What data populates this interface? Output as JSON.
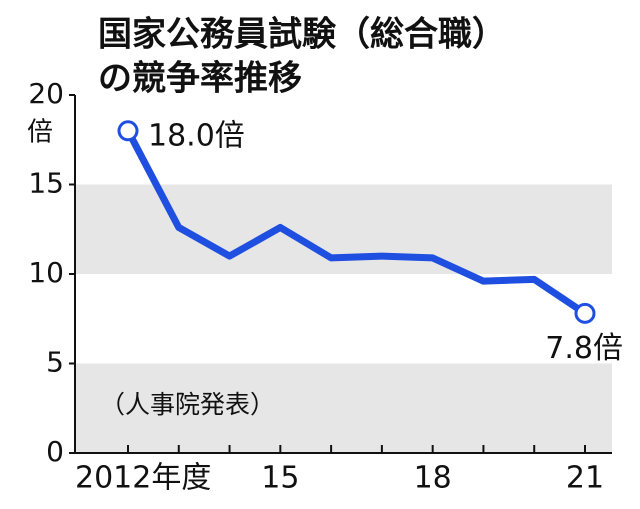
{
  "chart_data": {
    "type": "line",
    "title": [
      "国家公務員試験（総合職）",
      "の競争率推移"
    ],
    "y_unit": "倍",
    "source": "（人事院発表）",
    "categories": [
      "2012年度",
      null,
      null,
      "15",
      null,
      null,
      "18",
      null,
      null,
      "21"
    ],
    "series": [
      {
        "name": "競争率",
        "color": "#1f4fe0",
        "values": [
          18.0,
          12.6,
          11.0,
          12.6,
          10.9,
          11.0,
          10.9,
          9.6,
          9.7,
          7.8
        ],
        "value_labels": [
          "18.0倍",
          null,
          null,
          null,
          null,
          null,
          null,
          null,
          null,
          "7.8倍"
        ]
      }
    ],
    "ylim": [
      0,
      20
    ],
    "yticks": [
      0,
      5,
      10,
      15,
      20
    ],
    "band_color": "#e6e6e6"
  }
}
